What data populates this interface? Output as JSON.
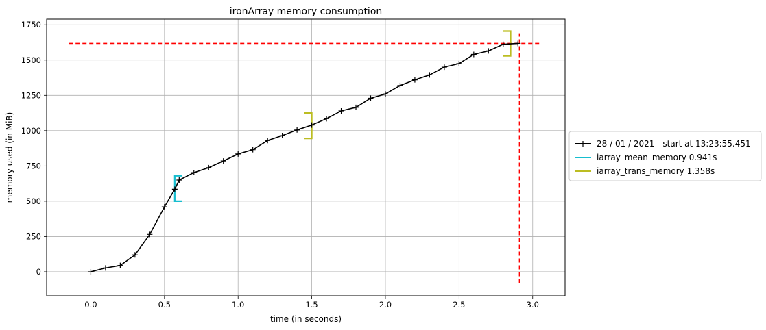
{
  "chart_data": {
    "type": "line",
    "title": "ironArray memory consumption",
    "xlabel": "time (in seconds)",
    "ylabel": "memory used (in MiB)",
    "xlim": [
      -0.3,
      3.22
    ],
    "ylim": [
      -170,
      1790
    ],
    "xticks": [
      0.0,
      0.5,
      1.0,
      1.5,
      2.0,
      2.5,
      3.0
    ],
    "xtick_labels": [
      "0.0",
      "0.5",
      "1.0",
      "1.5",
      "2.0",
      "2.5",
      "3.0"
    ],
    "yticks": [
      0,
      250,
      500,
      750,
      1000,
      1250,
      1500,
      1750
    ],
    "ytick_labels": [
      "0",
      "250",
      "500",
      "750",
      "1000",
      "1250",
      "1500",
      "1750"
    ],
    "grid": true,
    "legend_position": "right, outside plot",
    "series": [
      {
        "name": "28 / 01 / 2021 - start at 13:23:55.451",
        "color": "#000000",
        "marker": "plus",
        "x": [
          0.0,
          0.1,
          0.2,
          0.3,
          0.4,
          0.5,
          0.57,
          0.6,
          0.7,
          0.8,
          0.9,
          1.0,
          1.1,
          1.2,
          1.3,
          1.4,
          1.5,
          1.6,
          1.7,
          1.8,
          1.9,
          2.0,
          2.1,
          2.2,
          2.3,
          2.4,
          2.5,
          2.6,
          2.7,
          2.8,
          2.9
        ],
        "y": [
          0,
          27,
          45,
          120,
          265,
          460,
          585,
          650,
          703,
          738,
          785,
          835,
          865,
          930,
          965,
          1005,
          1040,
          1085,
          1140,
          1165,
          1230,
          1260,
          1320,
          1360,
          1395,
          1450,
          1475,
          1540,
          1565,
          1612,
          1618
        ]
      }
    ],
    "brackets": [
      {
        "name": "iarray_mean_memory 0.941s",
        "color": "#17becf",
        "x_start": 0.57,
        "x_end": 0.62,
        "y_low": 500,
        "y_high": 680,
        "open": "right"
      },
      {
        "name": "iarray_trans_memory 1.358s",
        "color": "#bcbd22",
        "x_start": 1.5,
        "x_end": 1.45,
        "y_low": 945,
        "y_high": 1125,
        "open": "left"
      },
      {
        "color": "#bcbd22",
        "x_start": 2.85,
        "x_end": 2.8,
        "y_low": 1530,
        "y_high": 1705,
        "open": "left"
      }
    ],
    "reference_lines": [
      {
        "orientation": "horizontal",
        "y": 1618,
        "x_from": -0.15,
        "x_to": 3.05,
        "color": "#ff0000",
        "style": "dashed"
      },
      {
        "orientation": "vertical",
        "x": 2.91,
        "y_from": -80,
        "y_to": 1690,
        "color": "#ff0000",
        "style": "dashed"
      }
    ],
    "legend": [
      {
        "label": "28 / 01 / 2021 - start at 13:23:55.451",
        "color": "#000000",
        "marker": "plus"
      },
      {
        "label": "iarray_mean_memory 0.941s",
        "color": "#17becf",
        "marker": "none"
      },
      {
        "label": "iarray_trans_memory 1.358s",
        "color": "#bcbd22",
        "marker": "none"
      }
    ]
  }
}
